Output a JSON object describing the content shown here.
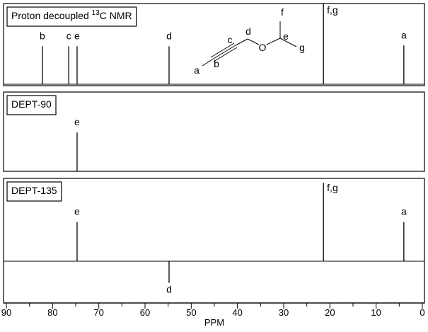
{
  "chart_data": {
    "type": "spectrum",
    "xlabel": "PPM",
    "xlim": [
      90,
      0
    ],
    "xticks": [
      90,
      80,
      70,
      60,
      50,
      40,
      30,
      20,
      10,
      0
    ],
    "minor_xticks": [
      85,
      75,
      65,
      55,
      45,
      35,
      25,
      15,
      5
    ],
    "color": "#000000",
    "panels": [
      {
        "label_parts": [
          "Proton decoupled ",
          "13",
          "C NMR"
        ],
        "ylim": [
          0,
          100
        ],
        "x": [
          82.2,
          76.5,
          74.7,
          54.8,
          21.4,
          4.0
        ],
        "values": [
          47,
          47,
          47,
          47,
          100,
          48
        ],
        "peak_labels": [
          "b",
          "c",
          "e",
          "d",
          "f,g",
          "a"
        ],
        "structure": {
          "atoms": [
            "a",
            "b",
            "c",
            "d",
            "e",
            "f",
            "g"
          ],
          "oxygen": "O"
        }
      },
      {
        "label_parts": [
          "DEPT-90"
        ],
        "ylim": [
          0,
          100
        ],
        "x": [
          74.7
        ],
        "values": [
          49
        ],
        "peak_labels": [
          "e"
        ]
      },
      {
        "label_parts": [
          "DEPT-135"
        ],
        "ylim": [
          -45,
          100
        ],
        "x": [
          74.7,
          54.8,
          21.4,
          4.0
        ],
        "values": [
          49,
          -27,
          98,
          49
        ],
        "peak_labels": [
          "e",
          "d",
          "f,g",
          "a"
        ]
      }
    ]
  }
}
